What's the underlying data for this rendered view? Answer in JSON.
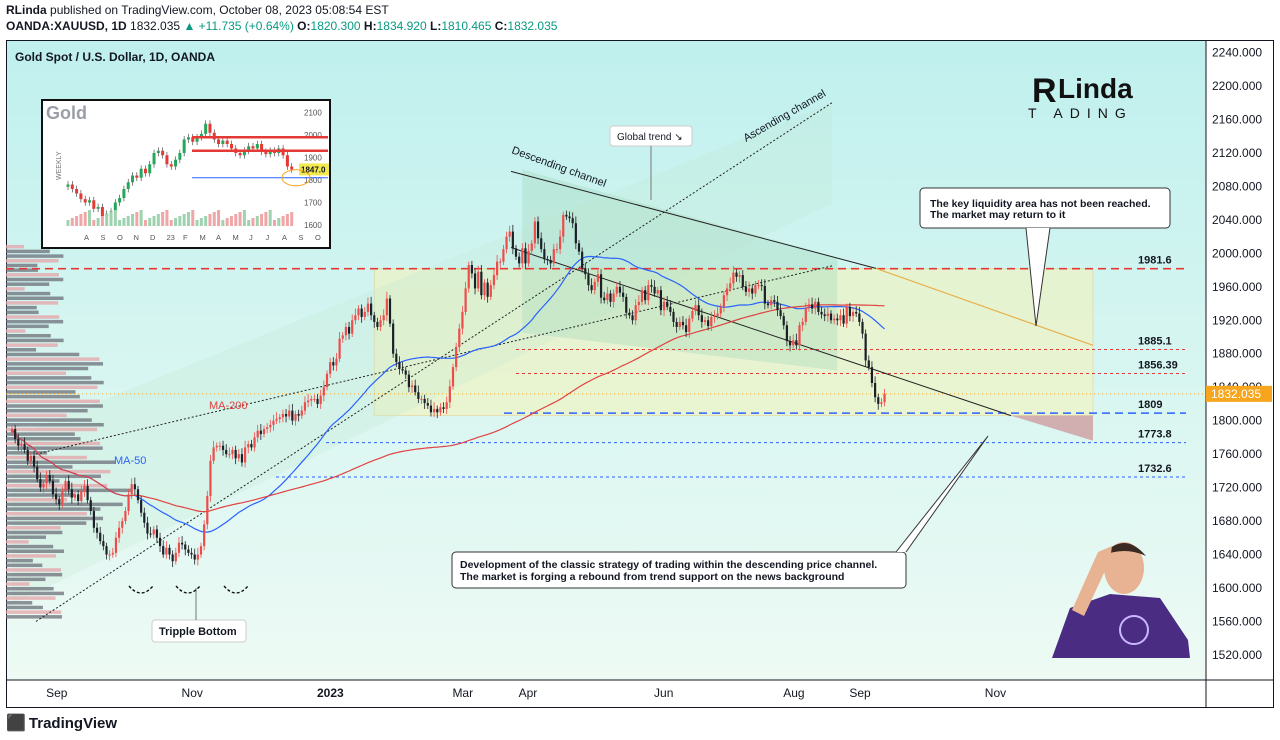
{
  "header": {
    "author": "RLinda",
    "published": "published on TradingView.com, October 08, 2023 05:08:54 EST",
    "symbol": "OANDA:XAUUSD, 1D",
    "price": "1832.035",
    "change": "▲ +11.735 (+0.64%)",
    "o_label": "O:",
    "o_val": "1820.300",
    "h_label": "H:",
    "h_val": "1834.920",
    "l_label": "L:",
    "l_val": "1810.465",
    "c_label": "C:",
    "c_val": "1832.035"
  },
  "footer": {
    "brand": "TradingView",
    "logo_icon": "tradingview-logo-icon"
  },
  "chart_data": {
    "type": "candlestick",
    "title": "Gold Spot / U.S. Dollar, 1D, OANDA",
    "watermark": "RLinda TRADING",
    "y_axis": {
      "ylim": [
        1490,
        2255
      ],
      "ticks": [
        "2240.000",
        "2200.000",
        "2160.000",
        "2120.000",
        "2080.000",
        "2040.000",
        "2000.000",
        "1960.000",
        "1920.000",
        "1880.000",
        "1840.000",
        "1800.000",
        "1760.000",
        "1720.000",
        "1680.000",
        "1640.000",
        "1600.000",
        "1560.000",
        "1520.000"
      ],
      "tick_values": [
        2240,
        2200,
        2160,
        2120,
        2080,
        2040,
        2000,
        1960,
        1920,
        1880,
        1840,
        1800,
        1760,
        1720,
        1680,
        1640,
        1600,
        1560,
        1520
      ],
      "last_price_label": "1832.035",
      "last_price_value": 1832.035,
      "last_price_color": "#f7a51d"
    },
    "x_axis": {
      "labels": [
        "Sep",
        "Nov",
        "2023",
        "Mar",
        "Apr",
        "Jun",
        "Aug",
        "Sep",
        "Nov"
      ],
      "label_index": [
        14,
        57,
        100,
        143,
        164,
        207,
        248,
        269,
        312
      ]
    },
    "candles_close": [
      1790,
      1778,
      1770,
      1772,
      1765,
      1752,
      1758,
      1745,
      1730,
      1720,
      1725,
      1735,
      1728,
      1712,
      1706,
      1700,
      1716,
      1728,
      1718,
      1708,
      1712,
      1704,
      1716,
      1722,
      1705,
      1692,
      1672,
      1666,
      1656,
      1650,
      1640,
      1640,
      1642,
      1660,
      1672,
      1680,
      1692,
      1712,
      1724,
      1718,
      1705,
      1690,
      1678,
      1665,
      1664,
      1670,
      1660,
      1650,
      1640,
      1648,
      1640,
      1632,
      1642,
      1654,
      1652,
      1646,
      1642,
      1640,
      1634,
      1640,
      1650,
      1676,
      1710,
      1752,
      1768,
      1770,
      1770,
      1765,
      1760,
      1760,
      1765,
      1755,
      1760,
      1750,
      1768,
      1772,
      1768,
      1780,
      1788,
      1784,
      1790,
      1792,
      1795,
      1800,
      1802,
      1804,
      1808,
      1805,
      1812,
      1800,
      1808,
      1806,
      1812,
      1822,
      1824,
      1826,
      1826,
      1820,
      1830,
      1840,
      1856,
      1870,
      1866,
      1874,
      1898,
      1902,
      1912,
      1904,
      1920,
      1926,
      1934,
      1924,
      1930,
      1940,
      1926,
      1918,
      1912,
      1920,
      1926,
      1946,
      1916,
      1880,
      1870,
      1862,
      1860,
      1855,
      1840,
      1842,
      1834,
      1826,
      1826,
      1821,
      1818,
      1810,
      1814,
      1810,
      1816,
      1814,
      1822,
      1841,
      1864,
      1888,
      1910,
      1930,
      1958,
      1986,
      1976,
      1958,
      1978,
      1950,
      1965,
      1948,
      1962,
      1974,
      1990,
      1990,
      2005,
      2020,
      2026,
      2006,
      1996,
      1988,
      2006,
      1988,
      2003,
      2012,
      2038,
      2018,
      2005,
      1993,
      1992,
      1988,
      2005,
      2005,
      2020,
      2046,
      2044,
      2042,
      2036,
      2012,
      2002,
      1982,
      1975,
      1962,
      1956,
      1966,
      1975,
      1947,
      1944,
      1952,
      1942,
      1952,
      1960,
      1953,
      1948,
      1929,
      1926,
      1920,
      1938,
      1942,
      1956,
      1944,
      1962,
      1960,
      1952,
      1956,
      1932,
      1942,
      1936,
      1930,
      1918,
      1912,
      1918,
      1914,
      1906,
      1922,
      1931,
      1938,
      1926,
      1918,
      1920,
      1913,
      1924,
      1925,
      1928,
      1936,
      1950,
      1958,
      1964,
      1977,
      1972,
      1974,
      1960,
      1954,
      1958,
      1952,
      1962,
      1962,
      1961,
      1940,
      1938,
      1944,
      1942,
      1932,
      1925,
      1914,
      1895,
      1890,
      1896,
      1890,
      1914,
      1918,
      1935,
      1939,
      1934,
      1942,
      1930,
      1927,
      1925,
      1928,
      1920,
      1922,
      1920,
      1926,
      1916,
      1936,
      1925,
      1930,
      1928,
      1918,
      1904,
      1872,
      1864,
      1845,
      1828,
      1820,
      1822,
      1832.035
    ],
    "moving_averages": [
      {
        "name": "MA-50",
        "color": "#2962ff",
        "label": "MA-50"
      },
      {
        "name": "MA-200",
        "color": "#e04242",
        "label": "MA-200"
      }
    ],
    "levels": [
      {
        "label": "1981.6",
        "value": 1981.6,
        "style": "dashed",
        "color": "#e53935"
      },
      {
        "label": "1885.1",
        "value": 1885.1,
        "style": "dotted",
        "color": "#e53935"
      },
      {
        "label": "1856.39",
        "value": 1856.39,
        "style": "dotted",
        "color": "#e53935"
      },
      {
        "label": "1809",
        "value": 1809,
        "style": "dashed",
        "color": "#2962ff"
      },
      {
        "label": "1773.8",
        "value": 1773.8,
        "style": "dotted",
        "color": "#2962ff"
      },
      {
        "label": "1732.6",
        "value": 1732.6,
        "style": "dotted",
        "color": "#2962ff"
      }
    ],
    "annotations": {
      "global_trend": "Global trend ↘",
      "descending_channel": "Descending channel",
      "ascending_channel": "Ascending channel",
      "liquidity_1": "The key liquidity area has not been reached.",
      "liquidity_2": "The market may return to it",
      "strategy_1": "Development of the classic strategy of trading within the descending price channel.",
      "strategy_2": "The market is forging a rebound from trend support on the news background",
      "tripple_bottom": "Tripple Bottom",
      "ma50": "MA-50",
      "ma200": "MA-200"
    },
    "inset": {
      "title": "Gold",
      "side_label": "WEEKLY",
      "y_ticks": [
        "2100",
        "2000",
        "1900",
        "1800",
        "1700",
        "1600"
      ],
      "y_tick_values": [
        2100,
        2000,
        1900,
        1800,
        1700,
        1600
      ],
      "price_tag": "1847.0",
      "x_labels": [
        "A",
        "S",
        "O",
        "N",
        "D",
        "23",
        "F",
        "M",
        "A",
        "M",
        "J",
        "J",
        "A",
        "S",
        "O"
      ],
      "closes": [
        1780,
        1760,
        1740,
        1715,
        1700,
        1710,
        1672,
        1680,
        1640,
        1650,
        1660,
        1700,
        1720,
        1760,
        1790,
        1820,
        1810,
        1850,
        1830,
        1870,
        1920,
        1930,
        1910,
        1870,
        1860,
        1890,
        1920,
        1980,
        1990,
        1970,
        1990,
        2005,
        2050,
        2010,
        1980,
        1960,
        1975,
        1960,
        1940,
        1920,
        1910,
        1930,
        1950,
        1940,
        1960,
        1925,
        1915,
        1930,
        1920,
        1940,
        1910,
        1860,
        1847
      ]
    }
  }
}
